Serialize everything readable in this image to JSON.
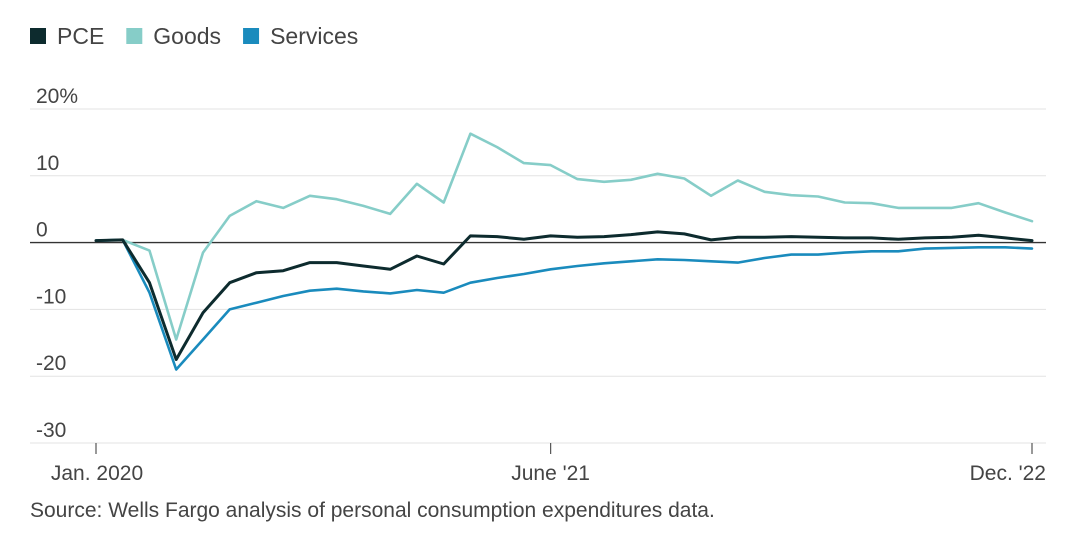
{
  "chart_data": {
    "type": "line",
    "legend": {
      "placement": "top-left"
    },
    "source": "Source: Wells Fargo analysis of personal consumption expenditures data.",
    "y_ticks": [
      {
        "value": 20,
        "label": "20%"
      },
      {
        "value": 10,
        "label": "10"
      },
      {
        "value": 0,
        "label": "0"
      },
      {
        "value": -10,
        "label": "-10"
      },
      {
        "value": -20,
        "label": "-20"
      },
      {
        "value": -30,
        "label": "-30"
      }
    ],
    "ylim": [
      -30,
      20
    ],
    "x_ticks": [
      {
        "date": "2020-01",
        "label": "Jan. 2020"
      },
      {
        "date": "2021-06",
        "label": "June '21"
      },
      {
        "date": "2022-12",
        "label": "Dec. '22"
      }
    ],
    "x": [
      "2020-01",
      "2020-02",
      "2020-03",
      "2020-04",
      "2020-05",
      "2020-06",
      "2020-07",
      "2020-08",
      "2020-09",
      "2020-10",
      "2020-11",
      "2020-12",
      "2021-01",
      "2021-02",
      "2021-03",
      "2021-04",
      "2021-05",
      "2021-06",
      "2021-07",
      "2021-08",
      "2021-09",
      "2021-10",
      "2021-11",
      "2021-12",
      "2022-01",
      "2022-02",
      "2022-03",
      "2022-04",
      "2022-05",
      "2022-06",
      "2022-07",
      "2022-08",
      "2022-09",
      "2022-10",
      "2022-11",
      "2022-12"
    ],
    "series": [
      {
        "name": "PCE",
        "color": "#0d2b2e",
        "values": [
          0.3,
          0.4,
          -6,
          -17.5,
          -10.5,
          -6,
          -4.5,
          -4.2,
          -3,
          -3,
          -3.5,
          -4,
          -2,
          -3.2,
          1,
          0.9,
          0.5,
          1,
          0.8,
          0.9,
          1.2,
          1.6,
          1.3,
          0.4,
          0.8,
          0.8,
          0.9,
          0.8,
          0.7,
          0.7,
          0.5,
          0.7,
          0.8,
          1.1,
          0.7,
          0.3
        ]
      },
      {
        "name": "Goods",
        "color": "#86cdc8",
        "values": [
          0.3,
          0.4,
          -1.2,
          -14.5,
          -1.5,
          4,
          6.2,
          5.2,
          7,
          6.5,
          5.5,
          4.3,
          8.8,
          6,
          16.3,
          14.3,
          11.9,
          11.6,
          9.5,
          9.1,
          9.4,
          10.3,
          9.6,
          7,
          9.3,
          7.6,
          7.1,
          6.9,
          6,
          5.9,
          5.2,
          5.2,
          5.2,
          5.9,
          4.5,
          3.2
        ]
      },
      {
        "name": "Services",
        "color": "#1a8bbd",
        "values": [
          0.3,
          0.4,
          -7.5,
          -19,
          -14.5,
          -10,
          -9,
          -8,
          -7.2,
          -6.9,
          -7.3,
          -7.6,
          -7.1,
          -7.5,
          -6,
          -5.3,
          -4.7,
          -4,
          -3.5,
          -3.1,
          -2.8,
          -2.5,
          -2.6,
          -2.8,
          -3,
          -2.3,
          -1.8,
          -1.8,
          -1.5,
          -1.3,
          -1.3,
          -0.9,
          -0.8,
          -0.7,
          -0.7,
          -0.9
        ]
      }
    ]
  }
}
